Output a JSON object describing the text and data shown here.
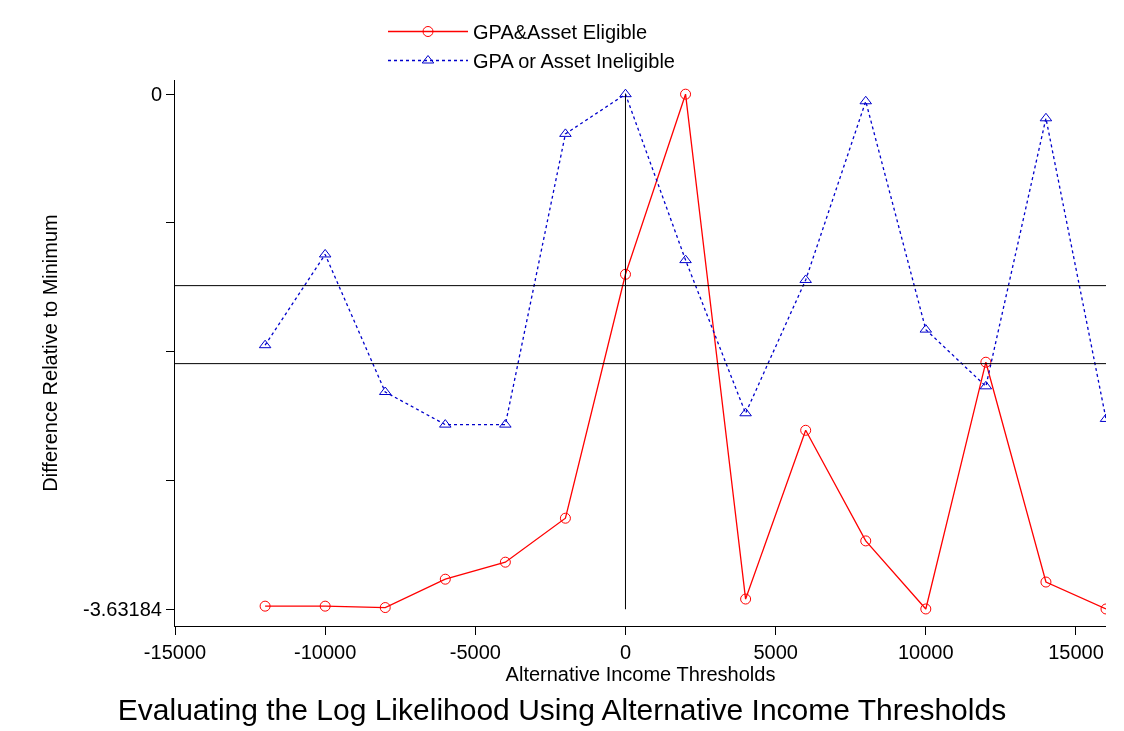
{
  "chart_data": {
    "type": "line",
    "title": "Evaluating the Log Likelihood Using Alternative Income Thresholds",
    "xlabel": "Alternative Income Thresholds",
    "ylabel": "Difference Relative to Minimum",
    "x": [
      -12000,
      -10000,
      -8000,
      -6000,
      -4000,
      -2000,
      0,
      2000,
      4000,
      6000,
      8000,
      10000,
      12000,
      14000,
      16000
    ],
    "series": [
      {
        "name": "GPA&Asset Eligible",
        "color": "#ff0000",
        "marker": "circle",
        "line_style": "solid",
        "values": [
          -3.61,
          -3.61,
          -3.62,
          -3.42,
          -3.3,
          -2.99,
          -1.27,
          0,
          -3.56,
          -2.37,
          -3.15,
          -3.63,
          -1.89,
          -3.44,
          -3.63
        ]
      },
      {
        "name": "GPA or Asset Ineligible",
        "color": "#0000cc",
        "marker": "triangle",
        "line_style": "dotted",
        "values": [
          -1.77,
          -1.13,
          -2.1,
          -2.33,
          -2.33,
          -0.28,
          0,
          -1.17,
          -2.25,
          -1.31,
          -0.05,
          -1.66,
          -2.06,
          -0.17,
          -2.29
        ]
      }
    ],
    "xlim": [
      -15000,
      16000
    ],
    "xticks": [
      -15000,
      -10000,
      -5000,
      0,
      5000,
      10000,
      15000
    ],
    "ylim": [
      -3.75,
      0.1
    ],
    "yticks": [
      {
        "value": -3.63184,
        "label": "-3.63184"
      },
      {
        "value": -2.72388,
        "label": null
      },
      {
        "value": -1.81592,
        "label": null
      },
      {
        "value": -0.90796,
        "label": null
      },
      {
        "value": 0,
        "label": "0"
      }
    ],
    "ref_lines": [
      {
        "axis": "y",
        "value": -1.35,
        "color": "#000000"
      },
      {
        "axis": "y",
        "value": -1.9,
        "color": "#000000"
      },
      {
        "axis": "x",
        "value": 0,
        "color": "#000000"
      }
    ],
    "grid": false,
    "legend": "top"
  }
}
